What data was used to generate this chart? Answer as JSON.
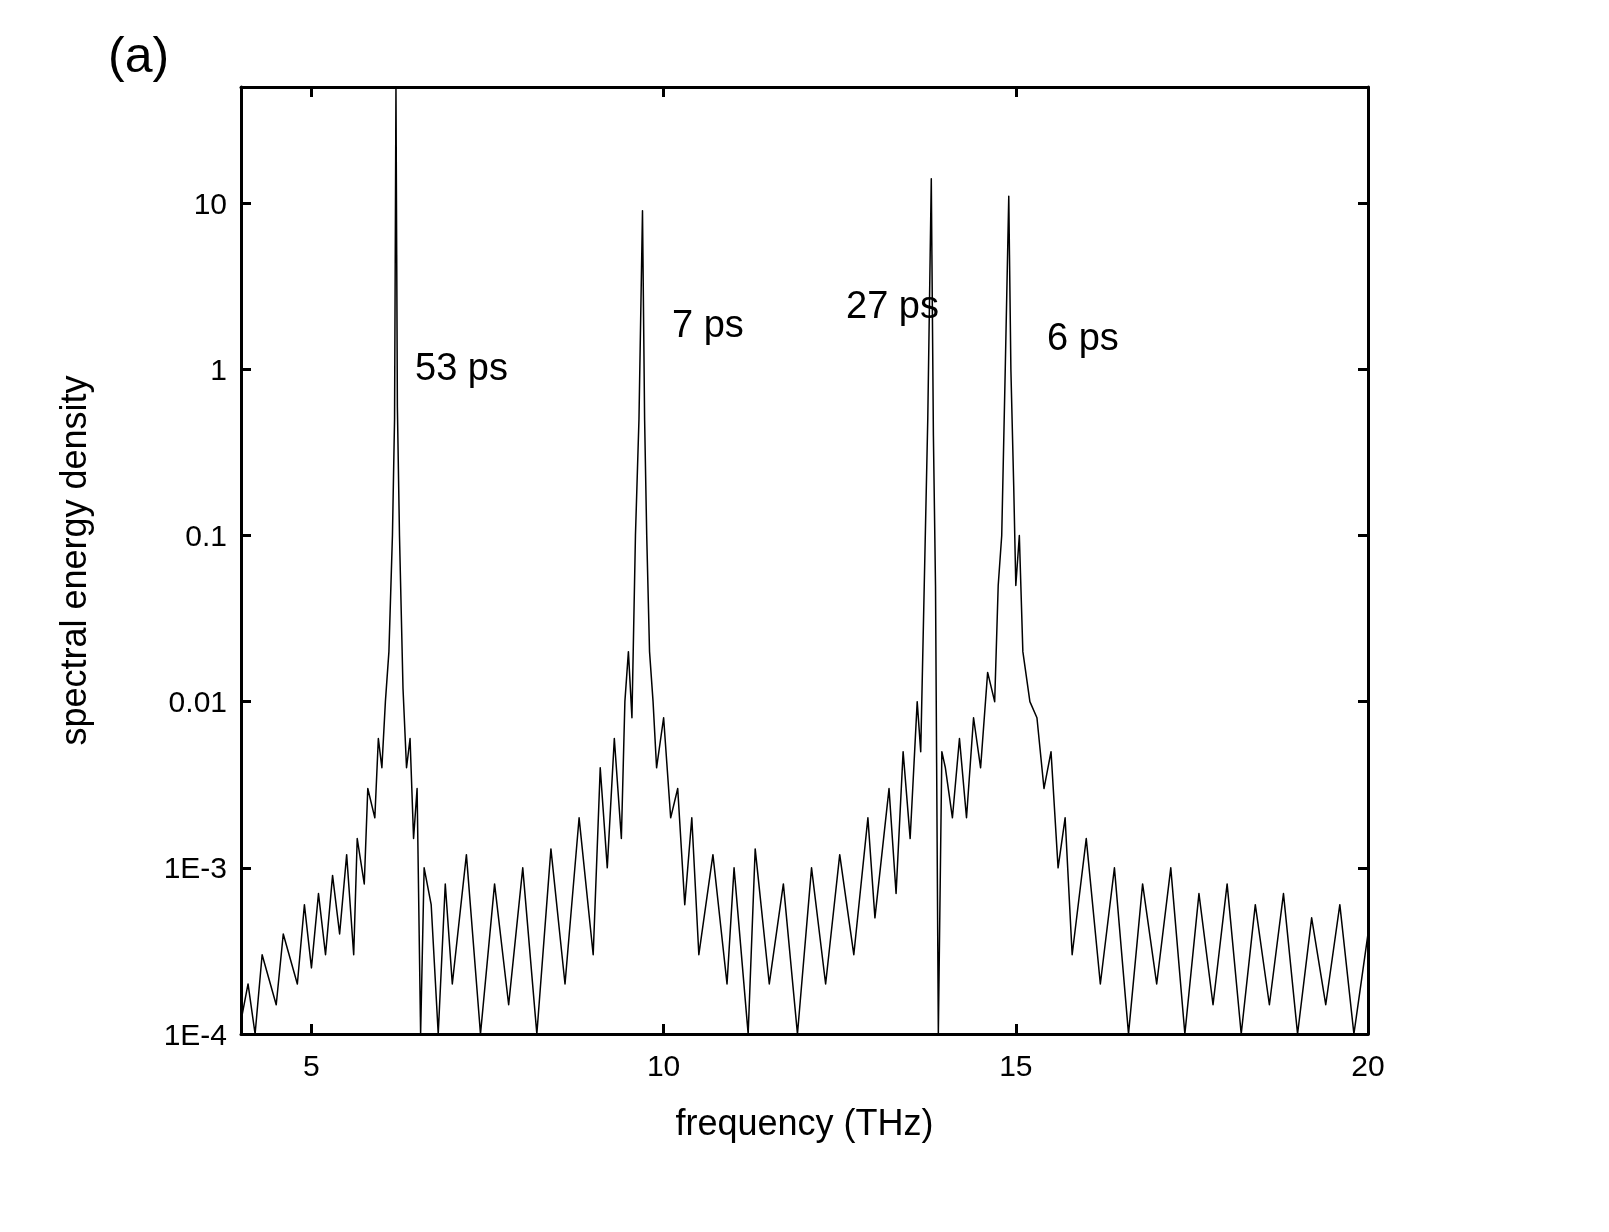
{
  "chart_data": {
    "type": "line",
    "xlabel": "frequency (THz)",
    "ylabel": "spectral energy density",
    "annotations": [
      "(a)",
      "53 ps",
      "7 ps",
      "27 ps",
      "6 ps"
    ],
    "xlim": [
      4,
      20
    ],
    "xticks": [
      5,
      10,
      15,
      20
    ],
    "ylim": [
      0.0001,
      50
    ],
    "log": "y",
    "yticks": [
      {
        "value": 0.0001,
        "label": "1E-4"
      },
      {
        "value": 0.001,
        "label": "1E-3"
      },
      0.01,
      0.1,
      1,
      10
    ],
    "grid": false,
    "marker": "none",
    "line_style": "solid",
    "x": [
      4.0,
      4.1,
      4.2,
      4.3,
      4.5,
      4.6,
      4.8,
      4.9,
      5.0,
      5.1,
      5.2,
      5.3,
      5.4,
      5.5,
      5.6,
      5.65,
      5.75,
      5.8,
      5.9,
      5.95,
      6.0,
      6.05,
      6.1,
      6.15,
      6.18,
      6.2,
      6.22,
      6.25,
      6.3,
      6.35,
      6.4,
      6.45,
      6.5,
      6.55,
      6.6,
      6.7,
      6.8,
      6.9,
      7.0,
      7.2,
      7.4,
      7.6,
      7.8,
      8.0,
      8.2,
      8.4,
      8.6,
      8.8,
      9.0,
      9.1,
      9.2,
      9.3,
      9.4,
      9.45,
      9.5,
      9.55,
      9.6,
      9.65,
      9.7,
      9.73,
      9.76,
      9.8,
      9.85,
      9.9,
      10.0,
      10.1,
      10.2,
      10.3,
      10.4,
      10.5,
      10.7,
      10.9,
      11.0,
      11.2,
      11.3,
      11.5,
      11.7,
      11.9,
      12.1,
      12.3,
      12.5,
      12.7,
      12.9,
      13.0,
      13.2,
      13.3,
      13.4,
      13.5,
      13.6,
      13.65,
      13.7,
      13.75,
      13.8,
      13.83,
      13.86,
      13.9,
      13.95,
      14.0,
      14.1,
      14.2,
      14.3,
      14.4,
      14.5,
      14.6,
      14.7,
      14.75,
      14.8,
      14.85,
      14.9,
      14.93,
      14.97,
      15.0,
      15.05,
      15.1,
      15.2,
      15.3,
      15.4,
      15.5,
      15.6,
      15.7,
      15.8,
      16.0,
      16.2,
      16.4,
      16.6,
      16.8,
      17.0,
      17.2,
      17.4,
      17.6,
      17.8,
      18.0,
      18.2,
      18.4,
      18.6,
      18.8,
      19.0,
      19.2,
      19.4,
      19.6,
      19.8,
      20.0
    ],
    "series": [
      {
        "color": "#000000",
        "values": [
          0.00012,
          0.0002,
          0.0001,
          0.0003,
          0.00015,
          0.0004,
          0.0002,
          0.0006,
          0.00025,
          0.0007,
          0.0003,
          0.0009,
          0.0004,
          0.0012,
          0.0003,
          0.0015,
          0.0008,
          0.003,
          0.002,
          0.006,
          0.004,
          0.01,
          0.02,
          0.1,
          0.5,
          50,
          0.6,
          0.1,
          0.012,
          0.004,
          0.006,
          0.0015,
          0.003,
          0.0001,
          0.001,
          0.0006,
          0.0001,
          0.0008,
          0.0002,
          0.0012,
          0.0001,
          0.0008,
          0.00015,
          0.001,
          0.0001,
          0.0013,
          0.0002,
          0.002,
          0.0003,
          0.004,
          0.001,
          0.006,
          0.0015,
          0.01,
          0.02,
          0.008,
          0.1,
          0.5,
          9,
          0.5,
          0.1,
          0.02,
          0.01,
          0.004,
          0.008,
          0.002,
          0.003,
          0.0006,
          0.002,
          0.0003,
          0.0012,
          0.0002,
          0.001,
          0.0001,
          0.0013,
          0.0002,
          0.0008,
          0.0001,
          0.001,
          0.0002,
          0.0012,
          0.0003,
          0.002,
          0.0005,
          0.003,
          0.0007,
          0.005,
          0.0015,
          0.01,
          0.005,
          0.05,
          0.5,
          14,
          0.4,
          0.05,
          0.0001,
          0.005,
          0.004,
          0.002,
          0.006,
          0.002,
          0.008,
          0.004,
          0.015,
          0.01,
          0.05,
          0.1,
          1,
          11,
          1,
          0.2,
          0.05,
          0.1,
          0.02,
          0.01,
          0.008,
          0.003,
          0.005,
          0.001,
          0.002,
          0.0003,
          0.0015,
          0.0002,
          0.001,
          0.0001,
          0.0008,
          0.0002,
          0.001,
          0.0001,
          0.0007,
          0.00015,
          0.0008,
          0.0001,
          0.0006,
          0.00015,
          0.0007,
          0.0001,
          0.0005,
          0.00015,
          0.0006,
          0.0001,
          0.0004
        ]
      }
    ]
  }
}
